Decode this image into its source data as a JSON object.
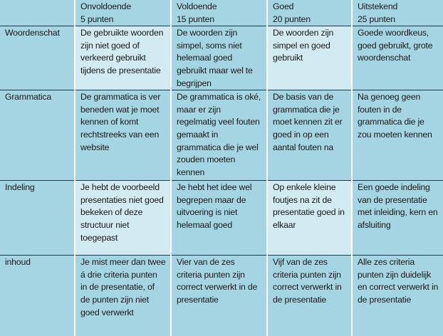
{
  "header": [
    "",
    "Onvoldoende\n5 punten",
    "Voldoende\n15 punten",
    "Goed\n20 punten",
    "Uitstekend\n25 punten"
  ],
  "header_lines": [
    [
      "",
      ""
    ],
    [
      "Onvoldoende",
      "5 punten"
    ],
    [
      "Voldoende",
      "15 punten"
    ],
    [
      "Goed",
      "20 punten"
    ],
    [
      "Uitstekend",
      "25 punten"
    ]
  ],
  "rows": [
    {
      "criterion": "Woordenschat",
      "cells": [
        "De gebruikte woorden zijn niet goed of verkeerd gebruikt tijdens de presentatie",
        "De woorden zijn simpel, soms niet helemaal goed gebruikt maar wel te begrijpen",
        "De woorden zijn simpel en goed gebruikt",
        "Goede woordkeus, goed gebruikt, grote woordenschat"
      ]
    },
    {
      "criterion": "Grammatica",
      "cells": [
        "De grammatica is ver beneden wat je moet kennen of komt rechtstreeks van een website",
        "De grammatica is oké, maar er zijn regelmatig veel fouten gemaakt in grammatica die je wel zouden moeten kennen",
        "De basis van de grammatica die je moet kennen zit er goed in op een aantal fouten na",
        "Na genoeg geen fouten in de grammatica die je zou moeten kennen"
      ]
    },
    {
      "criterion": "Indeling",
      "cells": [
        "Je hebt de voorbeeld presentaties niet goed bekeken of deze structuur niet toegepast",
        "Je hebt het idee wel begrepen maar de uitvoering is niet helemaal goed",
        "Op enkele kleine foutjes na zit de presentatie goed in elkaar",
        "Een goede indeling van de presentatie met inleiding, kern en afsluiting"
      ]
    },
    {
      "criterion": "inhoud",
      "cells": [
        "Je mist meer dan twee á drie criteria punten in de presentatie, of de punten zijn niet goed verwerkt",
        "Vier van de zes criteria punten zijn correct verwerkt in de presentatie",
        "Vijf van de zes criteria punten zijn correct verwerkt in de presentatie",
        "Alle zes criteria punten zijn duidelijk en correct verwerkt in de presentatie"
      ]
    }
  ],
  "colors": {
    "dark_cell": "#a5d5e2",
    "light_cell": "#d2eaf1",
    "row_border": "#1f3b4d"
  }
}
